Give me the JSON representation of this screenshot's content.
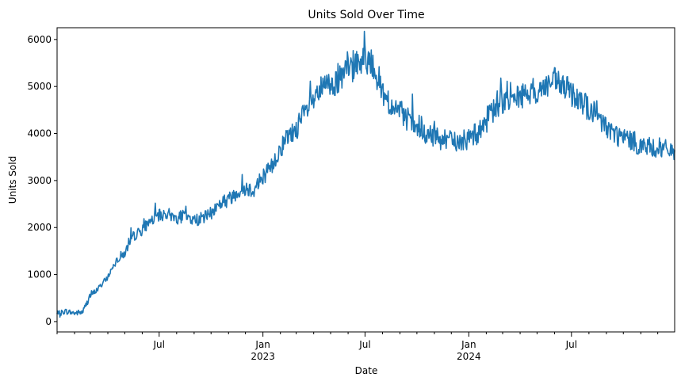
{
  "chart_data": {
    "type": "line",
    "title": "Units Sold Over Time",
    "xlabel": "Date",
    "ylabel": "Units Sold",
    "xlim": [
      "2022-01-01",
      "2024-12-31"
    ],
    "ylim": [
      -220,
      6250
    ],
    "grid": false,
    "legend": "none",
    "series_color": "#1f77b4",
    "x_ticks": [
      {
        "date": "2022-07-01",
        "label": "Jul",
        "year": ""
      },
      {
        "date": "2023-01-01",
        "label": "Jan",
        "year": "2023"
      },
      {
        "date": "2023-07-01",
        "label": "Jul",
        "year": ""
      },
      {
        "date": "2024-01-01",
        "label": "Jan",
        "year": "2024"
      },
      {
        "date": "2024-07-01",
        "label": "Jul",
        "year": ""
      }
    ],
    "y_ticks": [
      {
        "value": 0,
        "label": "0"
      },
      {
        "value": 1000,
        "label": "1000"
      },
      {
        "value": 2000,
        "label": "2000"
      },
      {
        "value": 3000,
        "label": "3000"
      },
      {
        "value": 4000,
        "label": "4000"
      },
      {
        "value": 5000,
        "label": "5000"
      },
      {
        "value": 6000,
        "label": "6000"
      }
    ],
    "series": [
      {
        "x": [
          "2022-01-01",
          "2022-01-15",
          "2022-02-01",
          "2022-02-15",
          "2022-03-01",
          "2022-03-15",
          "2022-04-01",
          "2022-04-15",
          "2022-05-01",
          "2022-05-15",
          "2022-06-01",
          "2022-06-15",
          "2022-07-01",
          "2022-07-15",
          "2022-08-01",
          "2022-08-15",
          "2022-09-01",
          "2022-09-15",
          "2022-10-01",
          "2022-10-15",
          "2022-11-01",
          "2022-11-15",
          "2022-12-01",
          "2022-12-15",
          "2023-01-01",
          "2023-01-15",
          "2023-02-01",
          "2023-02-15",
          "2023-03-01",
          "2023-03-15",
          "2023-04-01",
          "2023-04-15",
          "2023-05-01",
          "2023-05-15",
          "2023-06-01",
          "2023-06-15",
          "2023-07-01",
          "2023-07-15",
          "2023-08-01",
          "2023-08-15",
          "2023-09-01",
          "2023-09-15",
          "2023-10-01",
          "2023-10-15",
          "2023-11-01",
          "2023-11-15",
          "2023-12-01",
          "2023-12-15",
          "2024-01-01",
          "2024-01-15",
          "2024-02-01",
          "2024-02-15",
          "2024-03-01",
          "2024-03-15",
          "2024-04-01",
          "2024-04-15",
          "2024-05-01",
          "2024-05-15",
          "2024-06-01",
          "2024-06-15",
          "2024-07-01",
          "2024-07-15",
          "2024-08-01",
          "2024-08-15",
          "2024-09-01",
          "2024-09-15",
          "2024-10-01",
          "2024-10-15",
          "2024-11-01",
          "2024-11-15",
          "2024-12-01",
          "2024-12-15",
          "2024-12-31"
        ],
        "values": [
          150,
          220,
          180,
          200,
          550,
          700,
          950,
          1300,
          1450,
          1800,
          1950,
          2150,
          2250,
          2300,
          2200,
          2250,
          2150,
          2200,
          2300,
          2500,
          2600,
          2750,
          2850,
          2800,
          3100,
          3250,
          3700,
          3900,
          4100,
          4400,
          4700,
          4950,
          5050,
          5100,
          5350,
          5500,
          5600,
          5500,
          4900,
          4600,
          4450,
          4300,
          4100,
          3950,
          3950,
          3850,
          3850,
          3800,
          3900,
          4000,
          4300,
          4500,
          4700,
          4800,
          4800,
          4850,
          4900,
          5000,
          5100,
          5000,
          4850,
          4800,
          4500,
          4350,
          4150,
          4000,
          3900,
          3850,
          3750,
          3700,
          3700,
          3650,
          3650
        ]
      }
    ]
  }
}
